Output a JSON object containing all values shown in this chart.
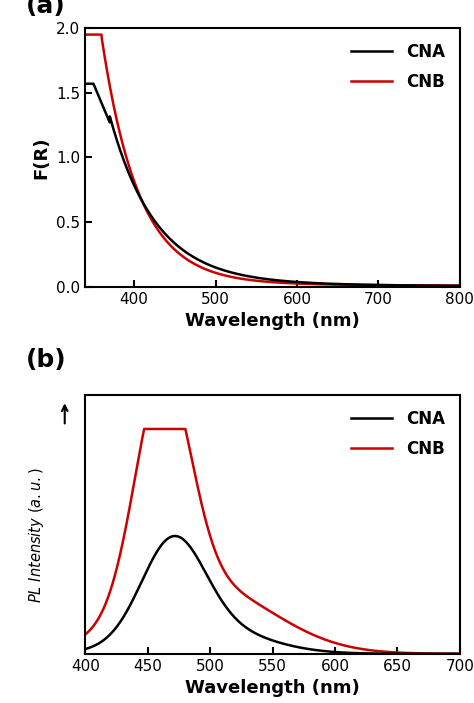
{
  "panel_a": {
    "title_label": "(a)",
    "xlabel": "Wavelength (nm)",
    "ylabel": "F(R)",
    "xlim": [
      340,
      800
    ],
    "ylim": [
      0.0,
      2.0
    ],
    "xticks": [
      400,
      500,
      600,
      700,
      800
    ],
    "yticks": [
      0.0,
      0.5,
      1.0,
      1.5,
      2.0
    ],
    "CNA_color": "#000000",
    "CNB_color": "#cc0000",
    "line_width": 1.8
  },
  "panel_b": {
    "title_label": "(b)",
    "xlabel": "Wavelength (nm)",
    "xlim": [
      400,
      700
    ],
    "xticks": [
      400,
      450,
      500,
      550,
      600,
      650,
      700
    ],
    "CNA_color": "#000000",
    "CNB_color": "#cc0000",
    "line_width": 1.8
  },
  "legend_CNA": "CNA",
  "legend_CNB": "CNB",
  "background_color": "#ffffff",
  "label_fontsize": 13,
  "tick_fontsize": 11,
  "panel_label_fontsize": 18,
  "legend_fontsize": 12
}
